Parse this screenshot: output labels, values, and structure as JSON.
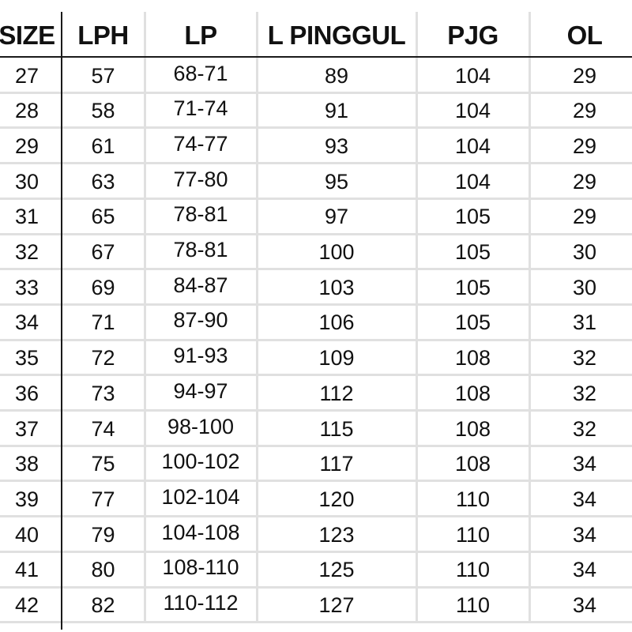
{
  "table": {
    "headers": [
      "SIZE",
      "LPH",
      "LP",
      "L PINGGUL",
      "PJG",
      "OL"
    ],
    "rows": [
      [
        "27",
        "57",
        "68-71",
        "89",
        "104",
        "29"
      ],
      [
        "28",
        "58",
        "71-74",
        "91",
        "104",
        "29"
      ],
      [
        "29",
        "61",
        "74-77",
        "93",
        "104",
        "29"
      ],
      [
        "30",
        "63",
        "77-80",
        "95",
        "104",
        "29"
      ],
      [
        "31",
        "65",
        "78-81",
        "97",
        "105",
        "29"
      ],
      [
        "32",
        "67",
        "78-81",
        "100",
        "105",
        "30"
      ],
      [
        "33",
        "69",
        "84-87",
        "103",
        "105",
        "30"
      ],
      [
        "34",
        "71",
        "87-90",
        "106",
        "105",
        "31"
      ],
      [
        "35",
        "72",
        "91-93",
        "109",
        "108",
        "32"
      ],
      [
        "36",
        "73",
        "94-97",
        "112",
        "108",
        "32"
      ],
      [
        "37",
        "74",
        "98-100",
        "115",
        "108",
        "32"
      ],
      [
        "38",
        "75",
        "100-102",
        "117",
        "108",
        "34"
      ],
      [
        "39",
        "77",
        "102-104",
        "120",
        "110",
        "34"
      ],
      [
        "40",
        "79",
        "104-108",
        "123",
        "110",
        "34"
      ],
      [
        "41",
        "80",
        "108-110",
        "125",
        "110",
        "34"
      ],
      [
        "42",
        "82",
        "110-112",
        "127",
        "110",
        "34"
      ]
    ]
  }
}
